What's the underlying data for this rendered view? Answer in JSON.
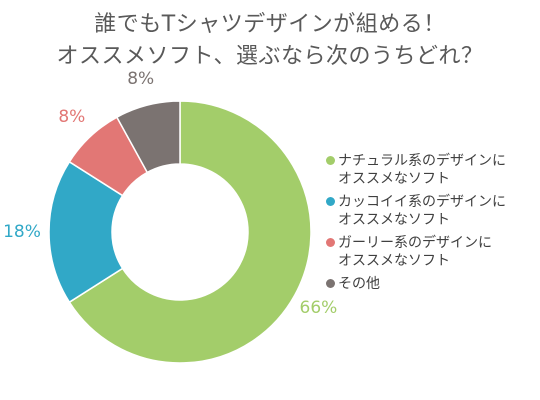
{
  "title_lines": [
    "誰でもTシャツデザインが組める！",
    "オススメソフト、選ぶなら次のうちどれ？"
  ],
  "chart_data": {
    "type": "pie",
    "style": "donut",
    "legend_position": "right",
    "series": [
      {
        "label_lines": [
          "ナチュラル系のデザインに",
          "オススメなソフト"
        ],
        "value": 66,
        "label": "66%",
        "color": "#a3cd6a"
      },
      {
        "label_lines": [
          "カッコイイ系のデザインに",
          "オススメなソフト"
        ],
        "value": 18,
        "label": "18%",
        "color": "#31a8c7"
      },
      {
        "label_lines": [
          "ガーリー系のデザインに",
          "オススメなソフト"
        ],
        "value": 8,
        "label": "8%",
        "color": "#e27775"
      },
      {
        "label_lines": [
          "その他"
        ],
        "value": 8,
        "label": "8%",
        "color": "#7b7371"
      }
    ]
  }
}
